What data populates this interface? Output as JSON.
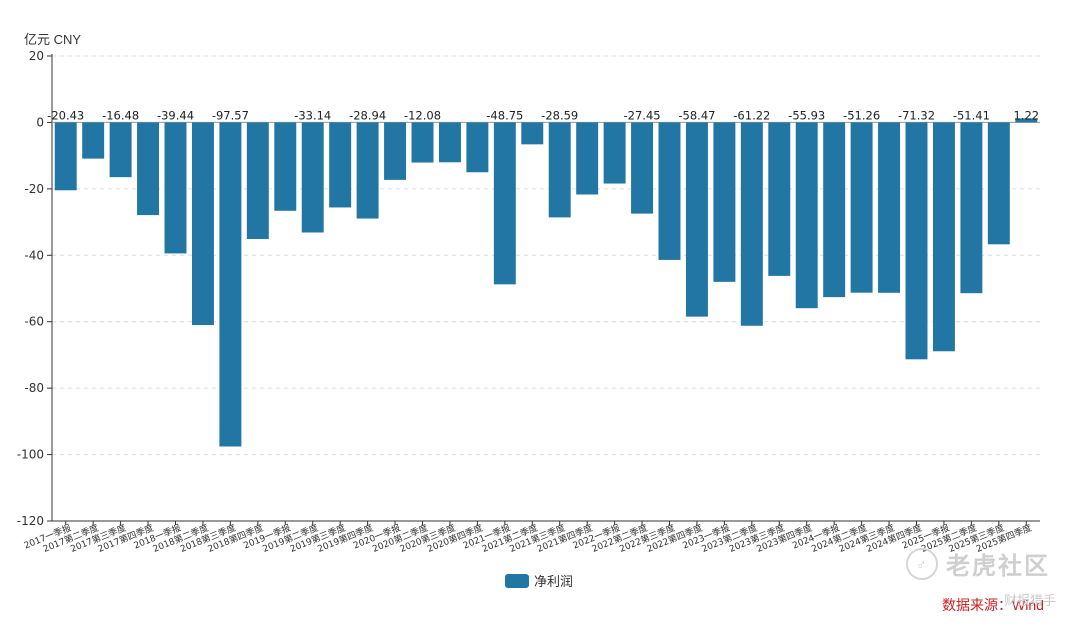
{
  "chart_data": {
    "type": "bar",
    "unit_label": "亿元  CNY",
    "legend": [
      {
        "name": "净利润",
        "color": "#2276a3"
      }
    ],
    "legend_position": "bottom-center",
    "ylim": [
      -120,
      20
    ],
    "yticks": [
      20,
      0,
      -20,
      -40,
      -60,
      -80,
      -100,
      -120
    ],
    "grid": true,
    "categories": [
      "2017一季报",
      "2017第二季度",
      "2017第三季度",
      "2017第四季度",
      "2018一季报",
      "2018第二季度",
      "2018第三季度",
      "2018第四季度",
      "2019一季报",
      "2019第二季度",
      "2019第三季度",
      "2019第四季度",
      "2020一季报",
      "2020第二季度",
      "2020第三季度",
      "2020第四季度",
      "2021一季报",
      "2021第二季度",
      "2021第三季度",
      "2021第四季度",
      "2022一季报",
      "2022第二季度",
      "2022第三季度",
      "2022第四季度",
      "2023一季报",
      "2023第二季度",
      "2023第三季度",
      "2023第四季度",
      "2024一季报",
      "2024第二季度",
      "2024第三季度",
      "2024第四季度",
      "2025一季报",
      "2025第二季度",
      "2025第三季度",
      "2025第四季度"
    ],
    "series": [
      {
        "name": "净利润",
        "color": "#2276a3",
        "values": [
          -20.43,
          -10.9,
          -16.48,
          -27.9,
          -39.44,
          -61.0,
          -97.57,
          -35.1,
          -26.6,
          -33.14,
          -25.6,
          -28.94,
          -17.3,
          -12.08,
          -12.0,
          -15.0,
          -48.75,
          -6.6,
          -28.59,
          -21.7,
          -18.4,
          -27.45,
          -41.4,
          -58.47,
          -48.0,
          -61.22,
          -46.2,
          -55.93,
          -52.6,
          -51.26,
          -51.3,
          -71.32,
          -68.9,
          -51.41,
          -36.7,
          1.22
        ]
      }
    ],
    "data_labels": {
      "0": "-20.43",
      "2": "-16.48",
      "4": "-39.44",
      "6": "-97.57",
      "9": "-33.14",
      "11": "-28.94",
      "13": "-12.08",
      "16": "-48.75",
      "18": "-28.59",
      "21": "-27.45",
      "23": "-58.47",
      "25": "-61.22",
      "27": "-55.93",
      "29": "-51.26",
      "31": "-71.32",
      "33": "-51.41",
      "35": "1.22"
    }
  },
  "source_note": "数据来源：Wind",
  "watermark": {
    "text": "老虎社区",
    "sub": "财报猎手",
    "icon_glyph": "♂"
  }
}
